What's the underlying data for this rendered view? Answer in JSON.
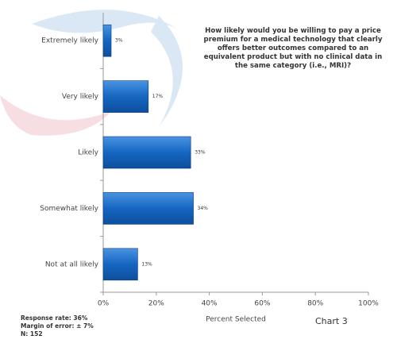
{
  "chart_data": {
    "type": "hbar",
    "title": "How likely would you be willing to pay a price premium for a medical technology that clearly offers better outcomes compared to an equivalent product but with no clinical data in the same category (i.e., MRI)?",
    "categories": [
      "Extremely likely",
      "Very likely",
      "Likely",
      "Somewhat likely",
      "Not at all likely"
    ],
    "values": [
      3,
      17,
      33,
      34,
      13
    ],
    "value_labels": [
      "3%",
      "17%",
      "33%",
      "34%",
      "13%"
    ],
    "color": "#1566c2",
    "xlim": [
      0,
      100
    ],
    "xticks": [
      {
        "value": 0,
        "label": "0%"
      },
      {
        "value": 20,
        "label": "20%"
      },
      {
        "value": 40,
        "label": "40%"
      },
      {
        "value": 60,
        "label": "60%"
      },
      {
        "value": 80,
        "label": "80%"
      },
      {
        "value": 100,
        "label": "100%"
      }
    ],
    "x_label": "Percent Selected",
    "chart_label": "Chart 3",
    "notes": [
      "Response rate: 36%",
      "Margin of error: ± 7%",
      "N: 152"
    ]
  }
}
